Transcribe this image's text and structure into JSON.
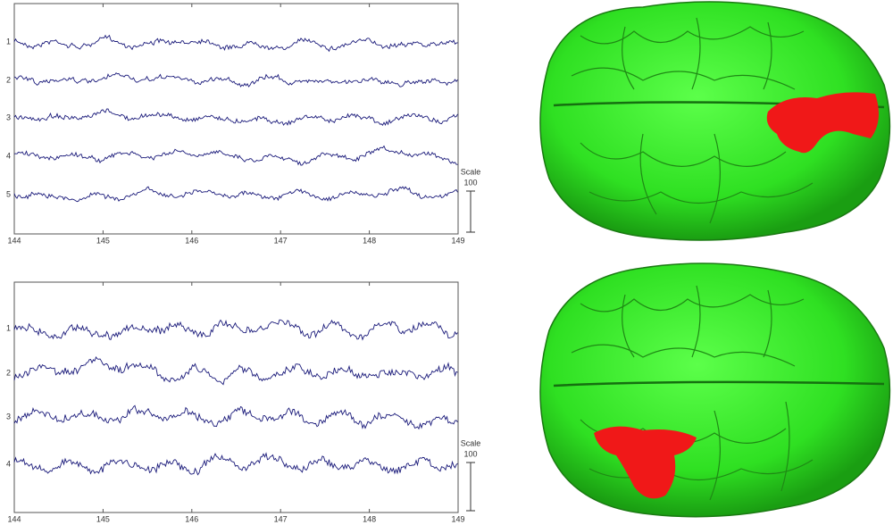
{
  "panels": [
    {
      "channels": [
        "1",
        "2",
        "3",
        "4",
        "5"
      ],
      "xticks": [
        "144",
        "145",
        "146",
        "147",
        "148",
        "149"
      ],
      "scale_label": "Scale",
      "scale_value": "100"
    },
    {
      "channels": [
        "1",
        "2",
        "3",
        "4"
      ],
      "xticks": [
        "144",
        "145",
        "146",
        "147",
        "148",
        "149"
      ],
      "scale_label": "Scale",
      "scale_value": "100"
    }
  ]
}
